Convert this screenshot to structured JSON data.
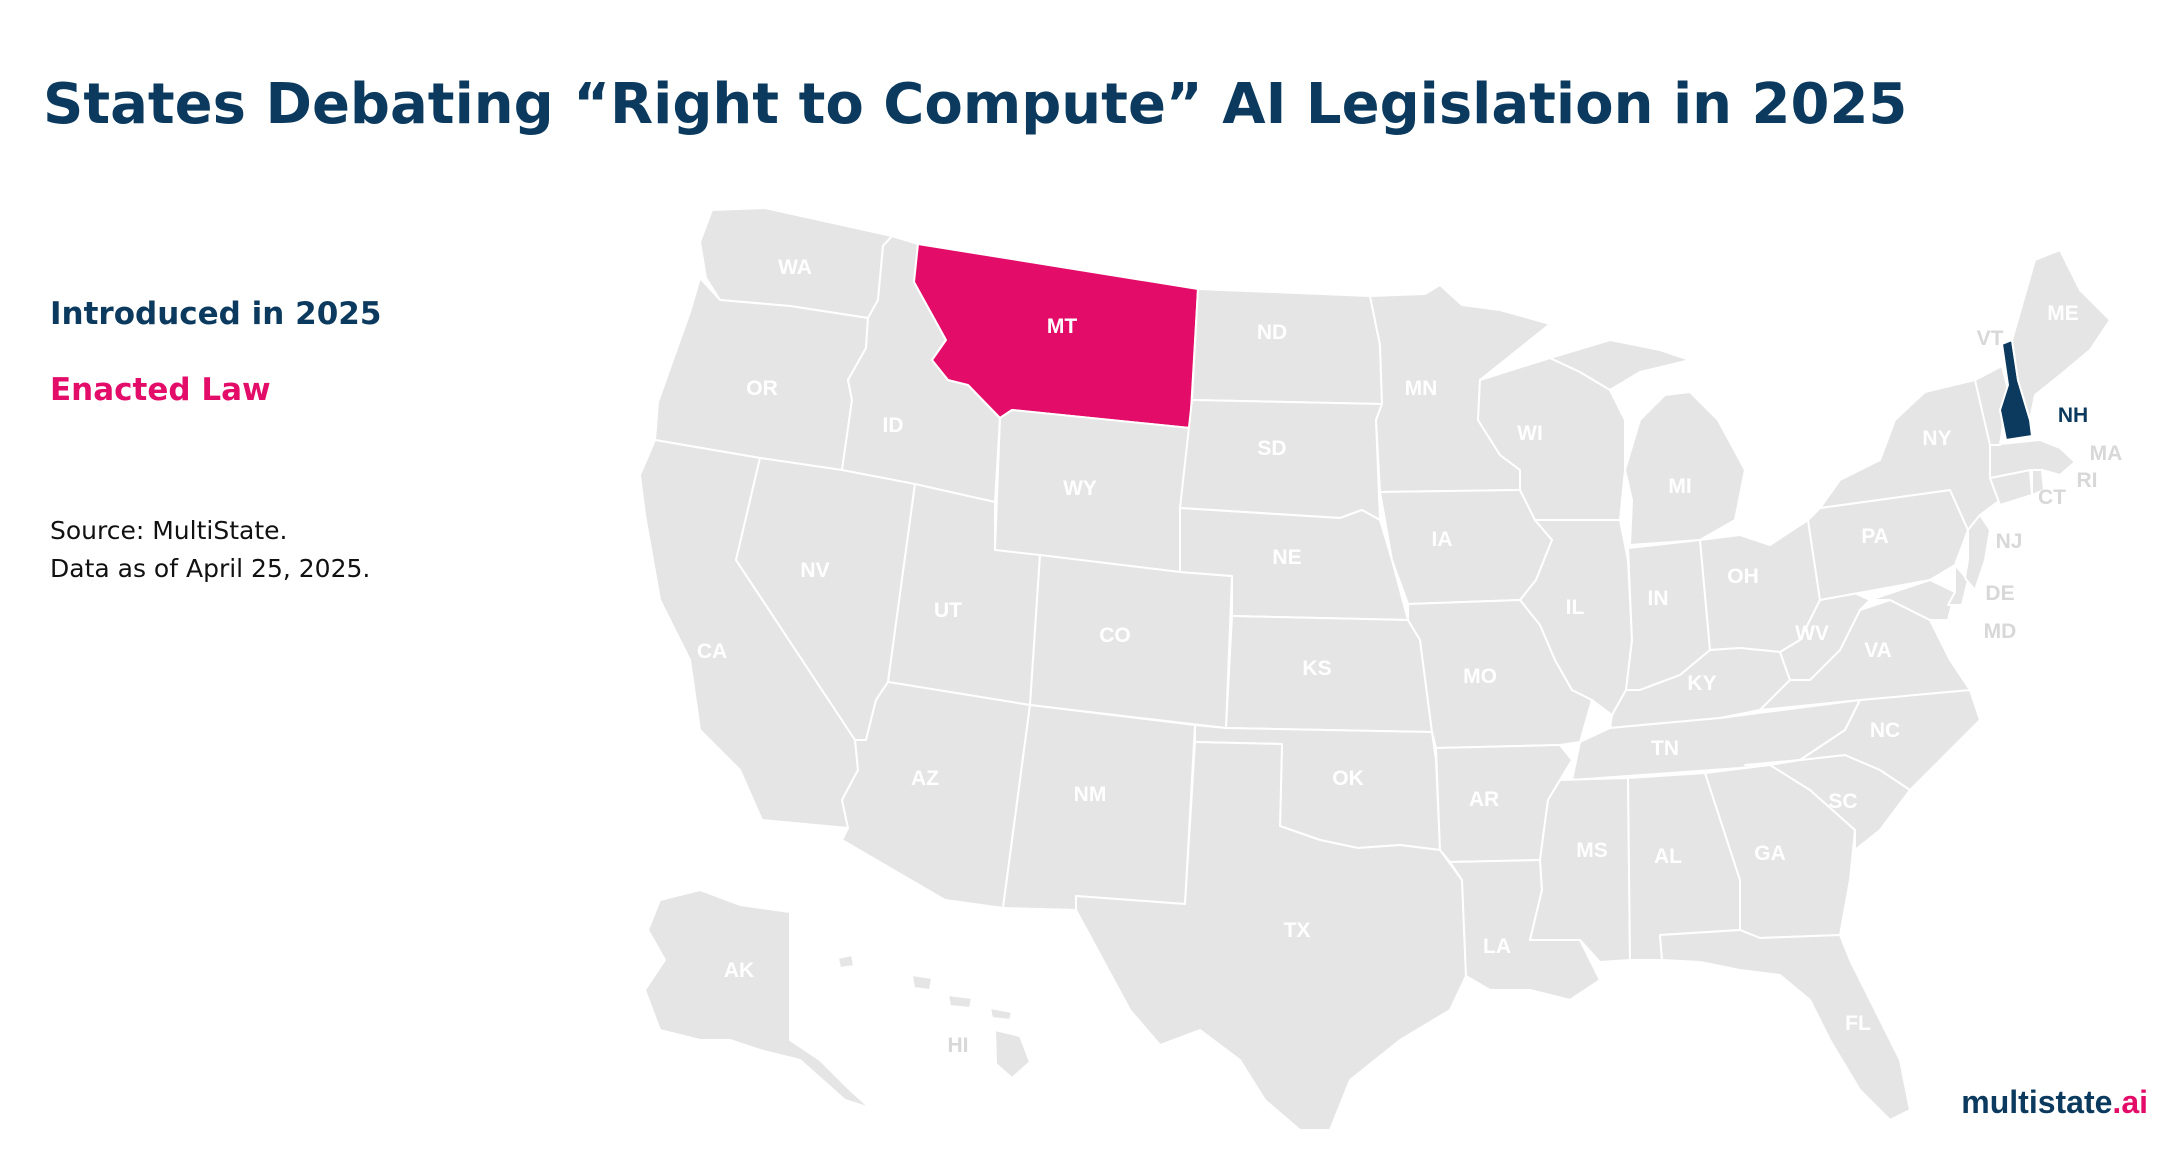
{
  "title": "States Debating “Right to Compute” AI Legislation in 2025",
  "legend": {
    "introduced": {
      "label": "Introduced in 2025",
      "color": "#0b3a5e"
    },
    "enacted": {
      "label": "Enacted Law",
      "color": "#e30c68"
    }
  },
  "source": {
    "line1": "Source: MultiState.",
    "line2": "Data as of April 25, 2025."
  },
  "logo": {
    "text": "multistate",
    "suffix": ".ai"
  },
  "colors": {
    "default_state": "#e5e5e5",
    "border": "#ffffff"
  },
  "states": {
    "WA": {
      "label": "WA",
      "status": "none"
    },
    "OR": {
      "label": "OR",
      "status": "none"
    },
    "CA": {
      "label": "CA",
      "status": "none"
    },
    "ID": {
      "label": "ID",
      "status": "none"
    },
    "NV": {
      "label": "NV",
      "status": "none"
    },
    "MT": {
      "label": "MT",
      "status": "enacted"
    },
    "WY": {
      "label": "WY",
      "status": "none"
    },
    "UT": {
      "label": "UT",
      "status": "none"
    },
    "AZ": {
      "label": "AZ",
      "status": "none"
    },
    "CO": {
      "label": "CO",
      "status": "none"
    },
    "NM": {
      "label": "NM",
      "status": "none"
    },
    "ND": {
      "label": "ND",
      "status": "none"
    },
    "SD": {
      "label": "SD",
      "status": "none"
    },
    "NE": {
      "label": "NE",
      "status": "none"
    },
    "KS": {
      "label": "KS",
      "status": "none"
    },
    "OK": {
      "label": "OK",
      "status": "none"
    },
    "TX": {
      "label": "TX",
      "status": "none"
    },
    "MN": {
      "label": "MN",
      "status": "none"
    },
    "IA": {
      "label": "IA",
      "status": "none"
    },
    "MO": {
      "label": "MO",
      "status": "none"
    },
    "AR": {
      "label": "AR",
      "status": "none"
    },
    "LA": {
      "label": "LA",
      "status": "none"
    },
    "WI": {
      "label": "WI",
      "status": "none"
    },
    "IL": {
      "label": "IL",
      "status": "none"
    },
    "MI": {
      "label": "MI",
      "status": "none"
    },
    "IN": {
      "label": "IN",
      "status": "none"
    },
    "OH": {
      "label": "OH",
      "status": "none"
    },
    "KY": {
      "label": "KY",
      "status": "none"
    },
    "TN": {
      "label": "TN",
      "status": "none"
    },
    "MS": {
      "label": "MS",
      "status": "none"
    },
    "AL": {
      "label": "AL",
      "status": "none"
    },
    "GA": {
      "label": "GA",
      "status": "none"
    },
    "FL": {
      "label": "FL",
      "status": "none"
    },
    "SC": {
      "label": "SC",
      "status": "none"
    },
    "NC": {
      "label": "NC",
      "status": "none"
    },
    "VA": {
      "label": "VA",
      "status": "none"
    },
    "WV": {
      "label": "WV",
      "status": "none"
    },
    "PA": {
      "label": "PA",
      "status": "none"
    },
    "NY": {
      "label": "NY",
      "status": "none"
    },
    "VT": {
      "label": "VT",
      "status": "none"
    },
    "NH": {
      "label": "NH",
      "status": "introduced"
    },
    "ME": {
      "label": "ME",
      "status": "none"
    },
    "MA": {
      "label": "MA",
      "status": "none"
    },
    "RI": {
      "label": "RI",
      "status": "none"
    },
    "CT": {
      "label": "CT",
      "status": "none"
    },
    "NJ": {
      "label": "NJ",
      "status": "none"
    },
    "DE": {
      "label": "DE",
      "status": "none"
    },
    "MD": {
      "label": "MD",
      "status": "none"
    },
    "AK": {
      "label": "AK",
      "status": "none"
    },
    "HI": {
      "label": "HI",
      "status": "none"
    }
  }
}
